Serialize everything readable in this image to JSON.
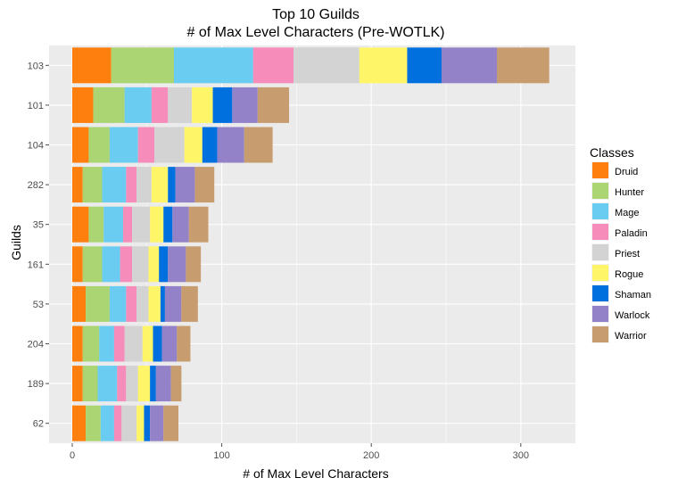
{
  "chart_data": {
    "type": "bar",
    "orientation": "horizontal",
    "stacked": true,
    "title": "Top 10 Guilds",
    "subtitle": "# of Max Level Characters (Pre-WOTLK)",
    "xlabel": "# of Max Level Characters",
    "ylabel": "Guilds",
    "xlim": [
      0,
      335
    ],
    "xticks": [
      0,
      100,
      200,
      300
    ],
    "grid": true,
    "legend": {
      "title": "Classes",
      "position": "right"
    },
    "categories": [
      "103",
      "101",
      "104",
      "282",
      "35",
      "161",
      "53",
      "204",
      "189",
      "62"
    ],
    "series": [
      {
        "name": "Druid",
        "color": "#FF7F0E",
        "values": [
          26,
          14,
          11,
          7,
          11,
          7,
          9,
          7,
          7,
          9
        ]
      },
      {
        "name": "Hunter",
        "color": "#ABD473",
        "values": [
          42,
          21,
          14,
          13,
          10,
          13,
          16,
          11,
          10,
          10
        ]
      },
      {
        "name": "Mage",
        "color": "#69CCF0",
        "values": [
          53,
          18,
          19,
          16,
          13,
          12,
          11,
          10,
          13,
          9
        ]
      },
      {
        "name": "Paladin",
        "color": "#F58CBA",
        "values": [
          27,
          11,
          11,
          7,
          6,
          8,
          7,
          7,
          6,
          5
        ]
      },
      {
        "name": "Priest",
        "color": "#D3D3D3",
        "values": [
          44,
          16,
          20,
          10,
          12,
          11,
          8,
          12,
          8,
          10
        ]
      },
      {
        "name": "Rogue",
        "color": "#FFF569",
        "values": [
          32,
          14,
          12,
          11,
          9,
          7,
          8,
          7,
          8,
          5
        ]
      },
      {
        "name": "Shaman",
        "color": "#0070DE",
        "values": [
          23,
          13,
          10,
          5,
          6,
          6,
          3,
          6,
          4,
          4
        ]
      },
      {
        "name": "Warlock",
        "color": "#9482C9",
        "values": [
          37,
          17,
          18,
          13,
          11,
          12,
          11,
          10,
          10,
          9
        ]
      },
      {
        "name": "Warrior",
        "color": "#C79C6E",
        "values": [
          35,
          21,
          19,
          13,
          13,
          10,
          11,
          9,
          7,
          10
        ]
      }
    ]
  }
}
